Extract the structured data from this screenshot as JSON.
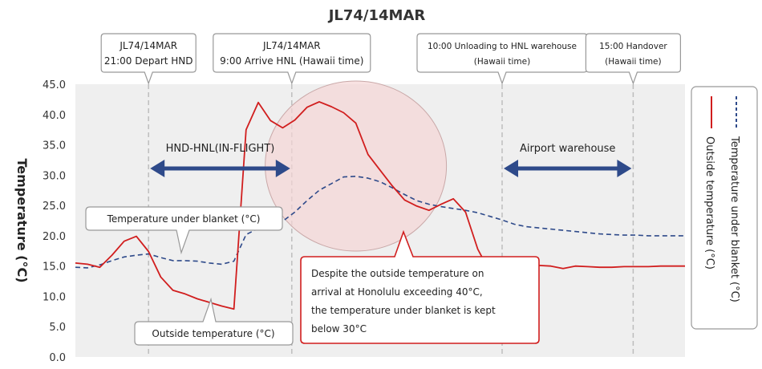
{
  "chart_data": {
    "type": "line",
    "title": "JL74/14MAR",
    "ylabel": "Temperature (°C)",
    "ylim": [
      0,
      45
    ],
    "yticks": [
      "0.0",
      "5.0",
      "10.0",
      "15.0",
      "20.0",
      "25.0",
      "30.0",
      "35.0",
      "40.0",
      "45.0"
    ],
    "grid": false,
    "legend_position": "right",
    "x_index": [
      0,
      2,
      4,
      6,
      8,
      10,
      12,
      14,
      16,
      18,
      20,
      22,
      24,
      26,
      28,
      30,
      32,
      34,
      36,
      38,
      40,
      42,
      44,
      46,
      48,
      50,
      52,
      54,
      56,
      58,
      60,
      62,
      64,
      66,
      68,
      70,
      72,
      74,
      76,
      78,
      80,
      82,
      84,
      86,
      88,
      90,
      92,
      94,
      96,
      98,
      100
    ],
    "series": [
      {
        "name": "Outside temperature (°C)",
        "color": "#d11e1e",
        "style": "solid",
        "values": [
          15.5,
          15.3,
          14.8,
          16.8,
          19.1,
          19.9,
          17.4,
          13.2,
          11.0,
          10.4,
          9.6,
          9.0,
          8.4,
          7.9,
          37.5,
          42.0,
          39.0,
          37.8,
          39.1,
          41.2,
          42.1,
          41.3,
          40.3,
          38.6,
          33.4,
          30.8,
          28.2,
          25.9,
          24.9,
          24.2,
          25.2,
          26.1,
          23.9,
          17.8,
          14.0,
          11.8,
          10.2,
          14.1,
          15.1,
          15.0,
          14.6,
          15.0,
          14.9,
          14.8,
          14.8,
          14.9,
          14.9,
          14.9,
          15.0,
          15.0,
          15.0
        ]
      },
      {
        "name": "Temperature under blanket (°C)",
        "color": "#2e4a8a",
        "style": "dashed",
        "values": [
          14.8,
          14.7,
          15.2,
          15.9,
          16.5,
          16.8,
          17.0,
          16.4,
          15.9,
          15.9,
          15.8,
          15.5,
          15.3,
          15.8,
          20.2,
          21.2,
          21.8,
          22.4,
          23.9,
          25.8,
          27.5,
          28.6,
          29.7,
          29.8,
          29.5,
          28.9,
          27.9,
          26.8,
          25.8,
          25.2,
          24.8,
          24.5,
          24.2,
          23.8,
          23.2,
          22.6,
          21.9,
          21.5,
          21.3,
          21.1,
          20.9,
          20.7,
          20.5,
          20.3,
          20.2,
          20.1,
          20.1,
          20.0,
          20.0,
          20.0,
          20.0
        ]
      }
    ],
    "events": [
      {
        "x": 12,
        "line1": "JL74/14MAR",
        "line2": "21:00 Depart HND"
      },
      {
        "x": 35.5,
        "line1": "JL74/14MAR",
        "line2": "9:00 Arrive HNL (Hawaii time)"
      },
      {
        "x": 70,
        "line1": "10:00 Unloading to HNL warehouse",
        "line2": "(Hawaii time)"
      },
      {
        "x": 91.5,
        "line1": "15:00 Handover",
        "line2": "(Hawaii time)"
      }
    ],
    "ranges": [
      {
        "label": "HND-HNL(IN-FLIGHT)",
        "x_start": 12,
        "x_end": 35.5
      },
      {
        "label": "Airport warehouse",
        "x_start": 70,
        "x_end": 91.5
      }
    ],
    "annotations": {
      "blanket_label": "Temperature under blanket (°C)",
      "outside_label": "Outside  temperature (°C)",
      "callout_lines": [
        "Despite the outside temperature on",
        "arrival at Honolulu exceeding 40°C,",
        "the temperature under blanket is kept",
        "below 30°C"
      ]
    },
    "colors": {
      "plot_bg": "#efefef",
      "outside": "#d11e1e",
      "blanket": "#2e4a8a",
      "arrow": "#2e4a8a",
      "highlight": "#f5d6d6"
    }
  }
}
